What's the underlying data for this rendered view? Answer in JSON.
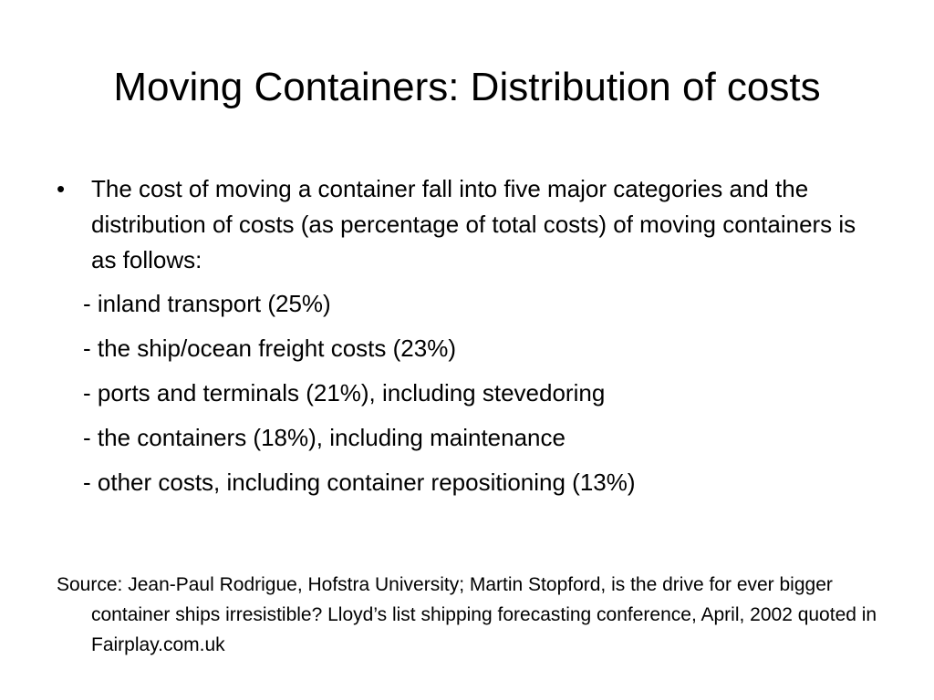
{
  "slide": {
    "title": "Moving Containers: Distribution of costs",
    "bullet": {
      "glyph": "•",
      "text": "The cost of moving a container fall into five major categories and the distribution of costs (as percentage of total costs) of moving containers is as follows:"
    },
    "sub_items": [
      "- inland transport (25%)",
      "- the ship/ocean freight costs (23%)",
      "- ports and terminals (21%), including stevedoring",
      "- the containers (18%), including maintenance",
      "- other costs, including container repositioning (13%)"
    ],
    "source": "Source: Jean-Paul Rodrigue, Hofstra University; Martin Stopford, is the drive for ever bigger container ships irresistible? Lloyd’s list shipping forecasting conference, April, 2002 quoted in Fairplay.com.uk"
  }
}
